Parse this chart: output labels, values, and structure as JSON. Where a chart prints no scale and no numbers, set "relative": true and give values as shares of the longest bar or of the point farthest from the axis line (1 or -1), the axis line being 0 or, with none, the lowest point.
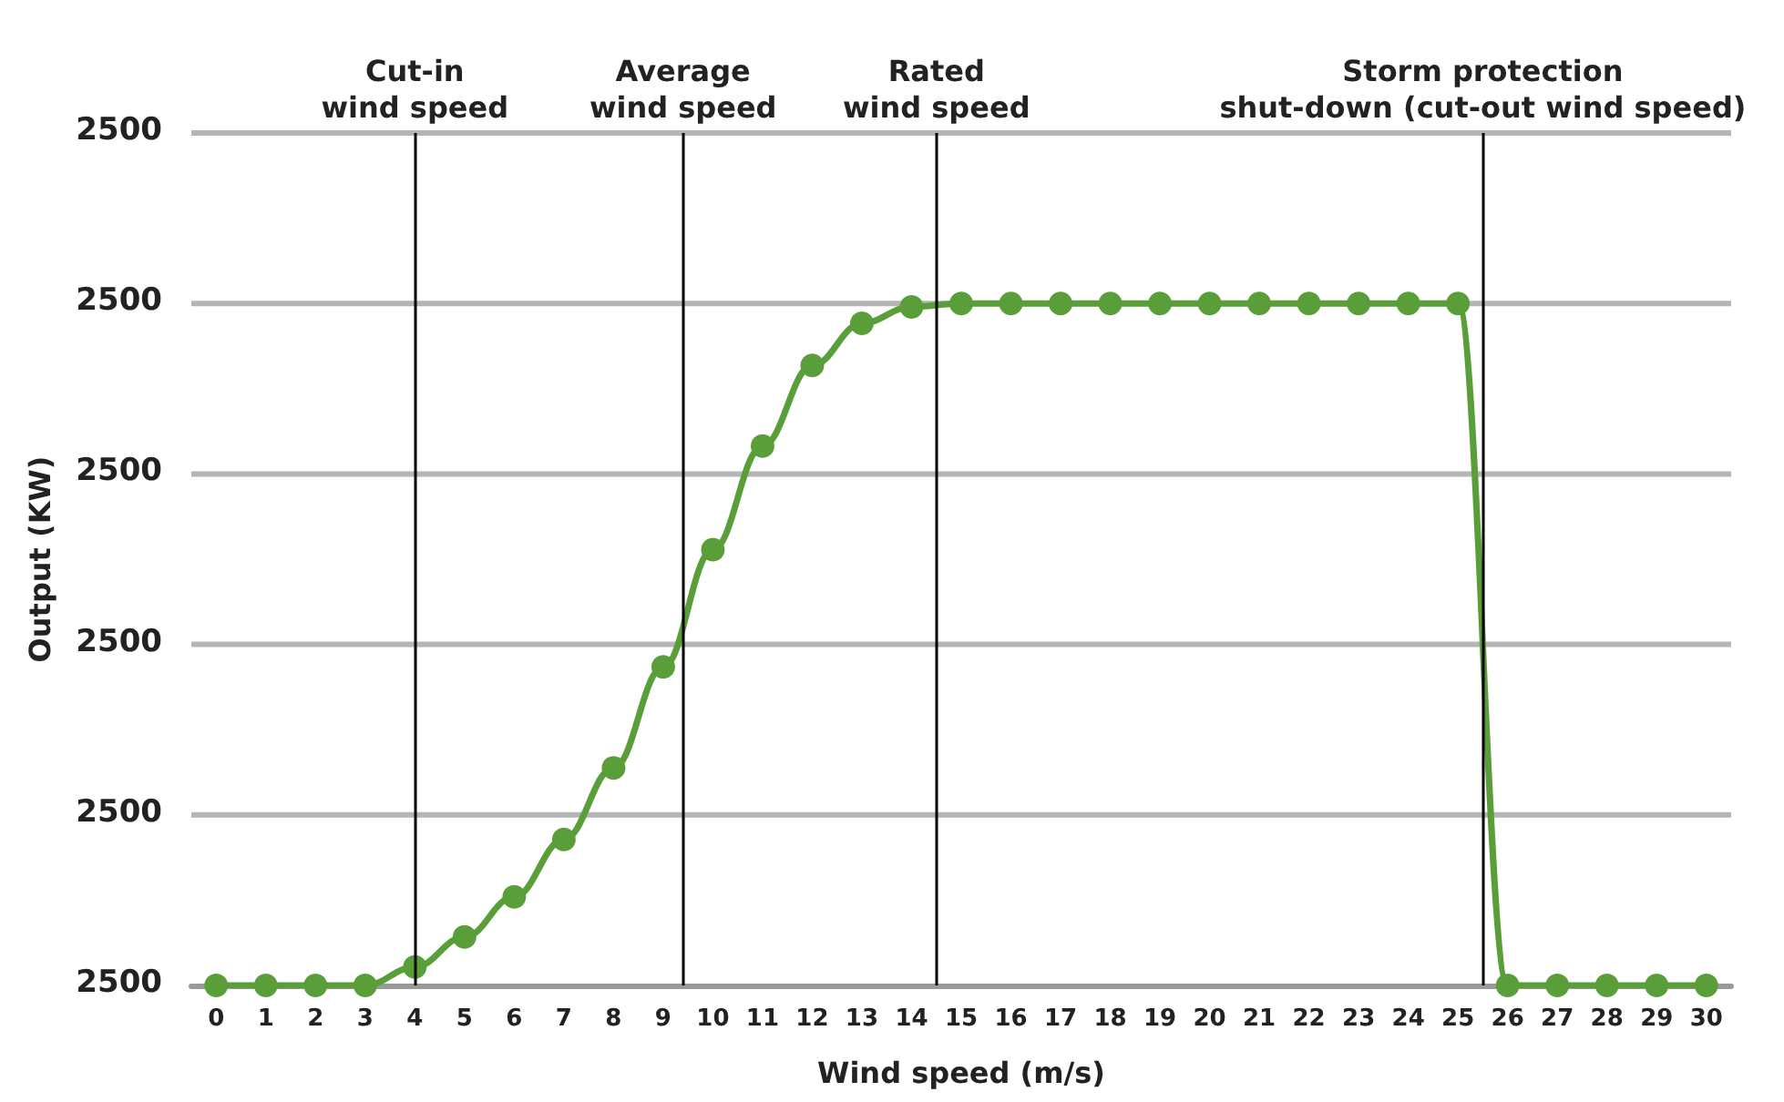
{
  "chart_data": {
    "type": "line",
    "xlabel": "Wind speed (m/s)",
    "ylabel": "Output (KW)",
    "relative": true,
    "x": [
      0,
      1,
      2,
      3,
      4,
      5,
      6,
      7,
      8,
      9,
      10,
      11,
      12,
      13,
      14,
      15,
      16,
      17,
      18,
      19,
      20,
      21,
      22,
      23,
      24,
      25,
      26,
      27,
      28,
      29,
      30
    ],
    "series": [
      {
        "color": "#5a9e3a",
        "values": [
          0,
          0,
          0,
          0,
          0.027,
          0.071,
          0.13,
          0.214,
          0.319,
          0.467,
          0.639,
          0.791,
          0.909,
          0.971,
          0.995,
          1,
          1,
          1,
          1,
          1,
          1,
          1,
          1,
          1,
          1,
          1,
          0,
          0,
          0,
          0,
          0
        ]
      }
    ],
    "xlim": [
      -0.5,
      30.5
    ],
    "xticks": [
      0,
      1,
      2,
      3,
      4,
      5,
      6,
      7,
      8,
      9,
      10,
      11,
      12,
      13,
      14,
      15,
      16,
      17,
      18,
      19,
      20,
      21,
      22,
      23,
      24,
      25,
      26,
      27,
      28,
      29,
      30
    ],
    "annotations": [
      "2500",
      "2500",
      "2500",
      "2500",
      "2500",
      "2500"
    ],
    "ref_lines": [
      {
        "axis": "x",
        "value": 4,
        "label": "Cut-in\nwind speed",
        "color": "#000000"
      },
      {
        "axis": "x",
        "value": 9.4,
        "label": "Average\nwind speed",
        "color": "#000000"
      },
      {
        "axis": "x",
        "value": 14.5,
        "label": "Rated\nwind speed",
        "color": "#000000"
      },
      {
        "axis": "x",
        "value": 25.5,
        "label": "Storm protection\nshut-down (cut-out wind speed)",
        "color": "#000000"
      }
    ],
    "grid": "y",
    "marker": "circle",
    "line_style": "solid"
  }
}
